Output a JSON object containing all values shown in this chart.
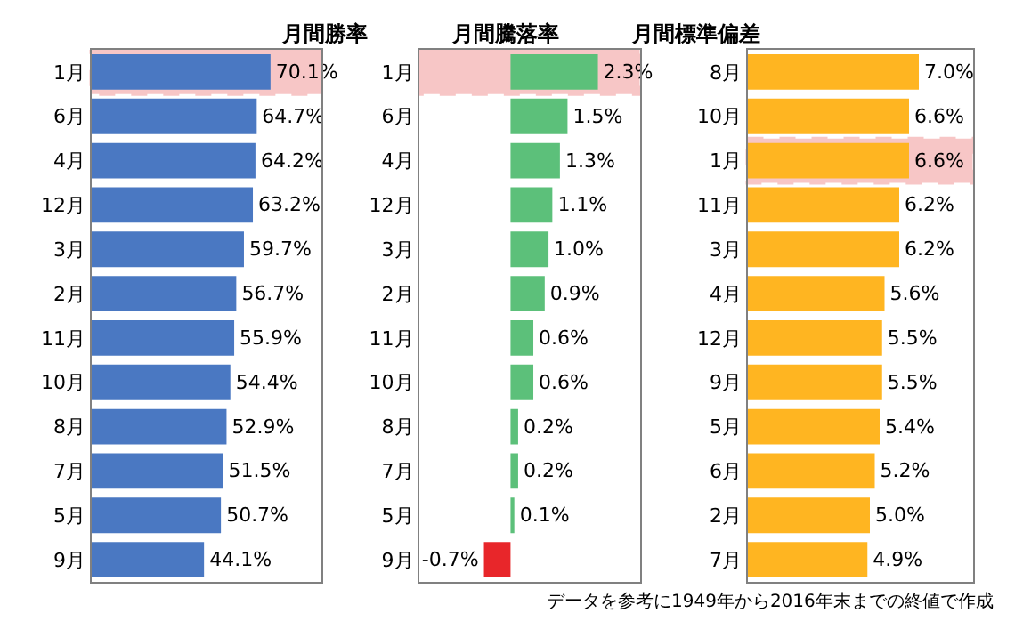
{
  "chart_data": [
    {
      "type": "bar",
      "orientation": "horizontal",
      "title": "月間勝率",
      "categories": [
        "1月",
        "6月",
        "4月",
        "12月",
        "3月",
        "2月",
        "11月",
        "10月",
        "8月",
        "7月",
        "5月",
        "9月"
      ],
      "values": [
        70.1,
        64.7,
        64.2,
        63.2,
        59.7,
        56.7,
        55.9,
        54.4,
        52.9,
        51.5,
        50.7,
        44.1
      ],
      "value_labels": [
        "70.1%",
        "64.7%",
        "64.2%",
        "63.2%",
        "59.7%",
        "56.7%",
        "55.9%",
        "54.4%",
        "52.9%",
        "51.5%",
        "50.7%",
        "44.1%"
      ],
      "color": "#4a78c2",
      "xlim": [
        0,
        90
      ],
      "tick_labels": "y",
      "bands": [
        {
          "axis": "y",
          "from": "1月",
          "to": "1月",
          "color": "#e02020"
        }
      ]
    },
    {
      "type": "bar",
      "orientation": "horizontal",
      "title": "月間騰落率",
      "categories": [
        "1月",
        "6月",
        "4月",
        "12月",
        "3月",
        "2月",
        "11月",
        "10月",
        "8月",
        "7月",
        "5月",
        "9月"
      ],
      "values": [
        2.3,
        1.5,
        1.3,
        1.1,
        1.0,
        0.9,
        0.6,
        0.6,
        0.2,
        0.2,
        0.1,
        -0.7
      ],
      "value_labels": [
        "2.3%",
        "1.5%",
        "1.3%",
        "1.1%",
        "1.0%",
        "0.9%",
        "0.6%",
        "0.6%",
        "0.2%",
        "0.2%",
        "0.1%",
        "-0.7%"
      ],
      "colors": [
        "#5cc07a",
        "#5cc07a",
        "#5cc07a",
        "#5cc07a",
        "#5cc07a",
        "#5cc07a",
        "#5cc07a",
        "#5cc07a",
        "#5cc07a",
        "#5cc07a",
        "#5cc07a",
        "#e8262a"
      ],
      "xlim": [
        -2.4,
        3.4
      ],
      "tick_labels": "y",
      "bands": [
        {
          "axis": "y",
          "from": "1月",
          "to": "1月",
          "color": "#e02020"
        }
      ]
    },
    {
      "type": "bar",
      "orientation": "horizontal",
      "title": "月間標準偏差",
      "categories": [
        "8月",
        "10月",
        "1月",
        "11月",
        "3月",
        "4月",
        "12月",
        "9月",
        "5月",
        "6月",
        "2月",
        "7月"
      ],
      "values": [
        7.0,
        6.6,
        6.6,
        6.2,
        6.2,
        5.6,
        5.5,
        5.5,
        5.4,
        5.2,
        5.0,
        4.9
      ],
      "value_labels": [
        "7.0%",
        "6.6%",
        "6.6%",
        "6.2%",
        "6.2%",
        "5.6%",
        "5.5%",
        "5.5%",
        "5.4%",
        "5.2%",
        "5.0%",
        "4.9%"
      ],
      "color": "#ffb521",
      "xlim": [
        0,
        9.2
      ],
      "tick_labels": "y",
      "bands": [
        {
          "axis": "y",
          "from": "1月",
          "to": "1月",
          "color": "#e02020"
        }
      ],
      "annotations": [
        "データを参考に1949年から2016年末までの終値で作成"
      ]
    }
  ]
}
